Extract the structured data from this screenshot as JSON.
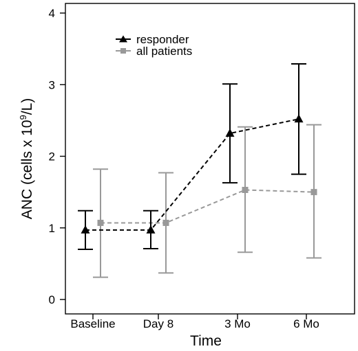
{
  "chart_data": {
    "type": "line",
    "title": "",
    "xlabel": "Time",
    "ylabel": {
      "prefix": "ANC (cells x 10",
      "superscript": "9",
      "suffix": "/L)"
    },
    "categories": [
      "Baseline",
      "Day 8",
      "3 Mo",
      "6 Mo"
    ],
    "ylim": [
      0,
      4
    ],
    "yticks": [
      "0",
      "1",
      "2",
      "3",
      "4"
    ],
    "grid": false,
    "legend_position": "top-center",
    "series": [
      {
        "name": "responder",
        "color": "#000000",
        "marker": "triangle",
        "line_style": "dashed",
        "values": [
          0.97,
          0.97,
          2.32,
          2.52
        ],
        "error_low": [
          0.7,
          0.71,
          1.63,
          1.75
        ],
        "error_high": [
          1.24,
          1.24,
          3.01,
          3.29
        ]
      },
      {
        "name": "all patients",
        "color": "#999999",
        "marker": "square",
        "line_style": "dashed",
        "values": [
          1.07,
          1.07,
          1.53,
          1.5
        ],
        "error_low": [
          0.31,
          0.37,
          0.66,
          0.58
        ],
        "error_high": [
          1.82,
          1.77,
          2.41,
          2.44
        ]
      }
    ]
  }
}
